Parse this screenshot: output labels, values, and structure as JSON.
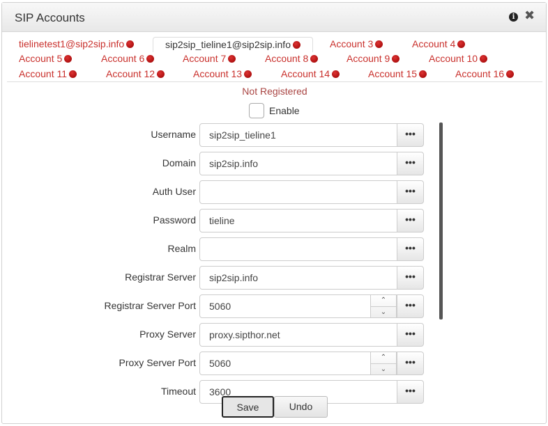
{
  "header": {
    "title": "SIP Accounts",
    "info_icon": "info-icon",
    "close_icon": "close-icon"
  },
  "tabs": [
    "tielinetest1@sip2sip.info",
    "sip2sip_tieline1@sip2sip.info",
    "Account 3",
    "Account 4",
    "Account 5",
    "Account 6",
    "Account 7",
    "Account 8",
    "Account 9",
    "Account 10",
    "Account 11",
    "Account 12",
    "Account 13",
    "Account 14",
    "Account 15",
    "Account 16"
  ],
  "active_tab": 1,
  "status_color": "#c9302c",
  "status": "Not Registered",
  "enable": {
    "label": "Enable",
    "checked": false
  },
  "fields": [
    {
      "label": "Username",
      "value": "sip2sip_tieline1"
    },
    {
      "label": "Domain",
      "value": "sip2sip.info"
    },
    {
      "label": "Auth User",
      "value": ""
    },
    {
      "label": "Password",
      "value": "tieline"
    },
    {
      "label": "Realm",
      "value": ""
    },
    {
      "label": "Registrar Server",
      "value": "sip2sip.info"
    },
    {
      "label": "Registrar Server Port",
      "value": "5060",
      "spinner": true
    },
    {
      "label": "Proxy Server",
      "value": "proxy.sipthor.net"
    },
    {
      "label": "Proxy Server Port",
      "value": "5060",
      "spinner": true
    },
    {
      "label": "Timeout",
      "value": "3600"
    }
  ],
  "more_label": "•••",
  "buttons": {
    "save": "Save",
    "undo": "Undo"
  }
}
